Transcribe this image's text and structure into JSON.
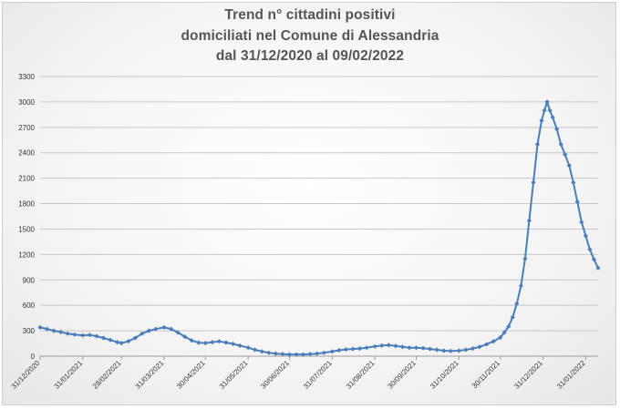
{
  "chart_data": {
    "type": "line",
    "title": [
      "Trend n° cittadini positivi",
      "domiciliati nel Comune di Alessandria",
      "dal 31/12/2020 al 09/02/2022"
    ],
    "xlabel": "",
    "ylabel": "",
    "ylim": [
      0,
      3300
    ],
    "yticks": [
      0,
      300,
      600,
      900,
      1200,
      1500,
      1800,
      2100,
      2400,
      2700,
      3000,
      3300
    ],
    "x_range": [
      "2020-12-31",
      "2022-02-09"
    ],
    "xtick_labels": [
      "31/12/2020",
      "31/01/2021",
      "28/02/2021",
      "31/03/2021",
      "30/04/2021",
      "31/05/2021",
      "30/06/2021",
      "31/07/2021",
      "31/08/2021",
      "30/09/2021",
      "31/10/2021",
      "30/11/2021",
      "31/12/2021",
      "31/01/2022"
    ],
    "grid": "horizontal",
    "legend": "none",
    "series_color": "#4a7ebb",
    "series": [
      {
        "points": [
          [
            "2020-12-31",
            340
          ],
          [
            "2021-01-05",
            320
          ],
          [
            "2021-01-10",
            300
          ],
          [
            "2021-01-15",
            285
          ],
          [
            "2021-01-20",
            265
          ],
          [
            "2021-01-25",
            255
          ],
          [
            "2021-01-31",
            245
          ],
          [
            "2021-02-05",
            250
          ],
          [
            "2021-02-10",
            235
          ],
          [
            "2021-02-15",
            215
          ],
          [
            "2021-02-20",
            190
          ],
          [
            "2021-02-25",
            165
          ],
          [
            "2021-02-28",
            155
          ],
          [
            "2021-03-05",
            175
          ],
          [
            "2021-03-10",
            215
          ],
          [
            "2021-03-15",
            265
          ],
          [
            "2021-03-20",
            300
          ],
          [
            "2021-03-25",
            320
          ],
          [
            "2021-03-31",
            340
          ],
          [
            "2021-04-05",
            320
          ],
          [
            "2021-04-10",
            280
          ],
          [
            "2021-04-15",
            230
          ],
          [
            "2021-04-20",
            185
          ],
          [
            "2021-04-25",
            160
          ],
          [
            "2021-04-30",
            155
          ],
          [
            "2021-05-05",
            165
          ],
          [
            "2021-05-10",
            175
          ],
          [
            "2021-05-15",
            160
          ],
          [
            "2021-05-20",
            145
          ],
          [
            "2021-05-25",
            125
          ],
          [
            "2021-05-31",
            100
          ],
          [
            "2021-06-05",
            75
          ],
          [
            "2021-06-10",
            55
          ],
          [
            "2021-06-15",
            40
          ],
          [
            "2021-06-20",
            30
          ],
          [
            "2021-06-25",
            25
          ],
          [
            "2021-06-30",
            20
          ],
          [
            "2021-07-05",
            20
          ],
          [
            "2021-07-10",
            20
          ],
          [
            "2021-07-15",
            25
          ],
          [
            "2021-07-20",
            30
          ],
          [
            "2021-07-25",
            40
          ],
          [
            "2021-07-31",
            55
          ],
          [
            "2021-08-05",
            70
          ],
          [
            "2021-08-10",
            80
          ],
          [
            "2021-08-15",
            85
          ],
          [
            "2021-08-20",
            90
          ],
          [
            "2021-08-25",
            100
          ],
          [
            "2021-08-31",
            115
          ],
          [
            "2021-09-05",
            125
          ],
          [
            "2021-09-10",
            130
          ],
          [
            "2021-09-15",
            120
          ],
          [
            "2021-09-20",
            110
          ],
          [
            "2021-09-25",
            100
          ],
          [
            "2021-09-30",
            100
          ],
          [
            "2021-10-05",
            95
          ],
          [
            "2021-10-10",
            85
          ],
          [
            "2021-10-15",
            75
          ],
          [
            "2021-10-20",
            65
          ],
          [
            "2021-10-25",
            60
          ],
          [
            "2021-10-31",
            65
          ],
          [
            "2021-11-05",
            75
          ],
          [
            "2021-11-10",
            90
          ],
          [
            "2021-11-15",
            110
          ],
          [
            "2021-11-20",
            140
          ],
          [
            "2021-11-25",
            175
          ],
          [
            "2021-11-30",
            220
          ],
          [
            "2021-12-03",
            280
          ],
          [
            "2021-12-06",
            350
          ],
          [
            "2021-12-09",
            460
          ],
          [
            "2021-12-12",
            620
          ],
          [
            "2021-12-15",
            830
          ],
          [
            "2021-12-18",
            1150
          ],
          [
            "2021-12-21",
            1600
          ],
          [
            "2021-12-24",
            2050
          ],
          [
            "2021-12-27",
            2500
          ],
          [
            "2021-12-30",
            2780
          ],
          [
            "2022-01-01",
            2900
          ],
          [
            "2022-01-03",
            3000
          ],
          [
            "2022-01-05",
            2900
          ],
          [
            "2022-01-07",
            2820
          ],
          [
            "2022-01-10",
            2680
          ],
          [
            "2022-01-13",
            2500
          ],
          [
            "2022-01-16",
            2380
          ],
          [
            "2022-01-19",
            2250
          ],
          [
            "2022-01-22",
            2050
          ],
          [
            "2022-01-25",
            1820
          ],
          [
            "2022-01-28",
            1580
          ],
          [
            "2022-01-31",
            1420
          ],
          [
            "2022-02-03",
            1260
          ],
          [
            "2022-02-06",
            1140
          ],
          [
            "2022-02-09",
            1040
          ]
        ]
      }
    ]
  }
}
